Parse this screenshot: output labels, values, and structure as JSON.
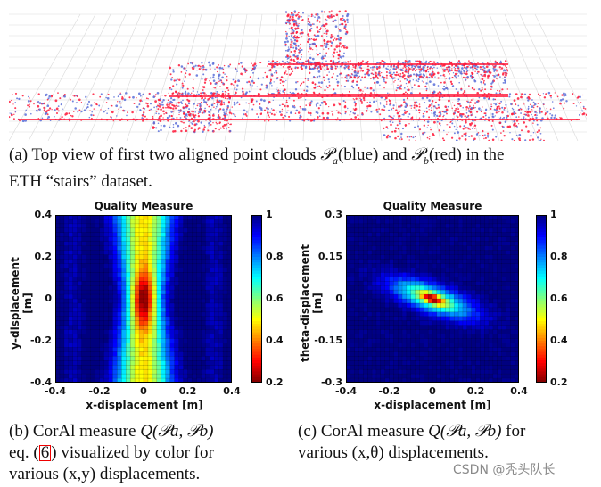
{
  "figure_a": {
    "caption_label": "(a)",
    "caption_line1_pre": "Top view of first two aligned point clouds",
    "pa_symbol": "𝒫",
    "pa_sub": "a",
    "pa_color_word": "(blue) and",
    "pb_symbol": "𝒫",
    "pb_sub": "b",
    "pb_color_word": "(red) in the",
    "caption_line2": "ETH “stairs” dataset.",
    "colors": {
      "blue_cloud": "#5a6fd8",
      "red_cloud": "#ff1a3a",
      "grid": "#d9d9d9"
    }
  },
  "figure_b": {
    "caption_line1_pre": "(b) CorAl measure",
    "caption_math": "Q(𝒫a, 𝒫b)",
    "caption_line2_pre": "eq. (",
    "caption_ref": "6",
    "caption_line2_post": ") visualized by color for",
    "caption_line3": "various (x,y) displacements."
  },
  "figure_c": {
    "caption_line1_pre": "(c) CorAl measure",
    "caption_math": "Q(𝒫a, 𝒫b)",
    "caption_line1_post": "for",
    "caption_line2": "various (x,θ) displacements."
  },
  "watermark": "CSDN @秃头队长",
  "chart_data": [
    {
      "type": "heatmap",
      "title": "Quality Measure",
      "xlabel": "x-displacement [m]",
      "ylabel": "y-displacement [m]",
      "xlim": [
        -0.4,
        0.4
      ],
      "ylim": [
        -0.4,
        0.4
      ],
      "x_ticks": [
        "-0.4",
        "-0.2",
        "0",
        "0.2",
        "0.4"
      ],
      "y_ticks": [
        "0.4",
        "0.2",
        "0",
        "-0.2",
        "-0.4"
      ],
      "colorbar_ticks": [
        "1",
        "0.8",
        "0.6",
        "0.4",
        "0.2"
      ],
      "colorbar_range": [
        0.2,
        1
      ],
      "colormap": "jet_reversed",
      "peak": {
        "x": 0,
        "y": 0,
        "value": 0.2
      },
      "description_shape": "vertical ridge along x=0"
    },
    {
      "type": "heatmap",
      "title": "Quality Measure",
      "xlabel": "x-displacement [m]",
      "ylabel": "theta-displacement [m]",
      "xlim": [
        -0.4,
        0.4
      ],
      "ylim": [
        -0.3,
        0.3
      ],
      "x_ticks": [
        "-0.4",
        "-0.2",
        "0",
        "0.2",
        "0.4"
      ],
      "y_ticks": [
        "0.3",
        "0.15",
        "0",
        "-0.15",
        "-0.3"
      ],
      "colorbar_ticks": [
        "1",
        "0.8",
        "0.6",
        "0.4",
        "0.2"
      ],
      "colorbar_range": [
        0.2,
        1
      ],
      "colormap": "jet_reversed",
      "peak": {
        "x": 0,
        "y": 0,
        "value": 0.2
      },
      "description_shape": "tilted ellipse elongated along x"
    }
  ]
}
